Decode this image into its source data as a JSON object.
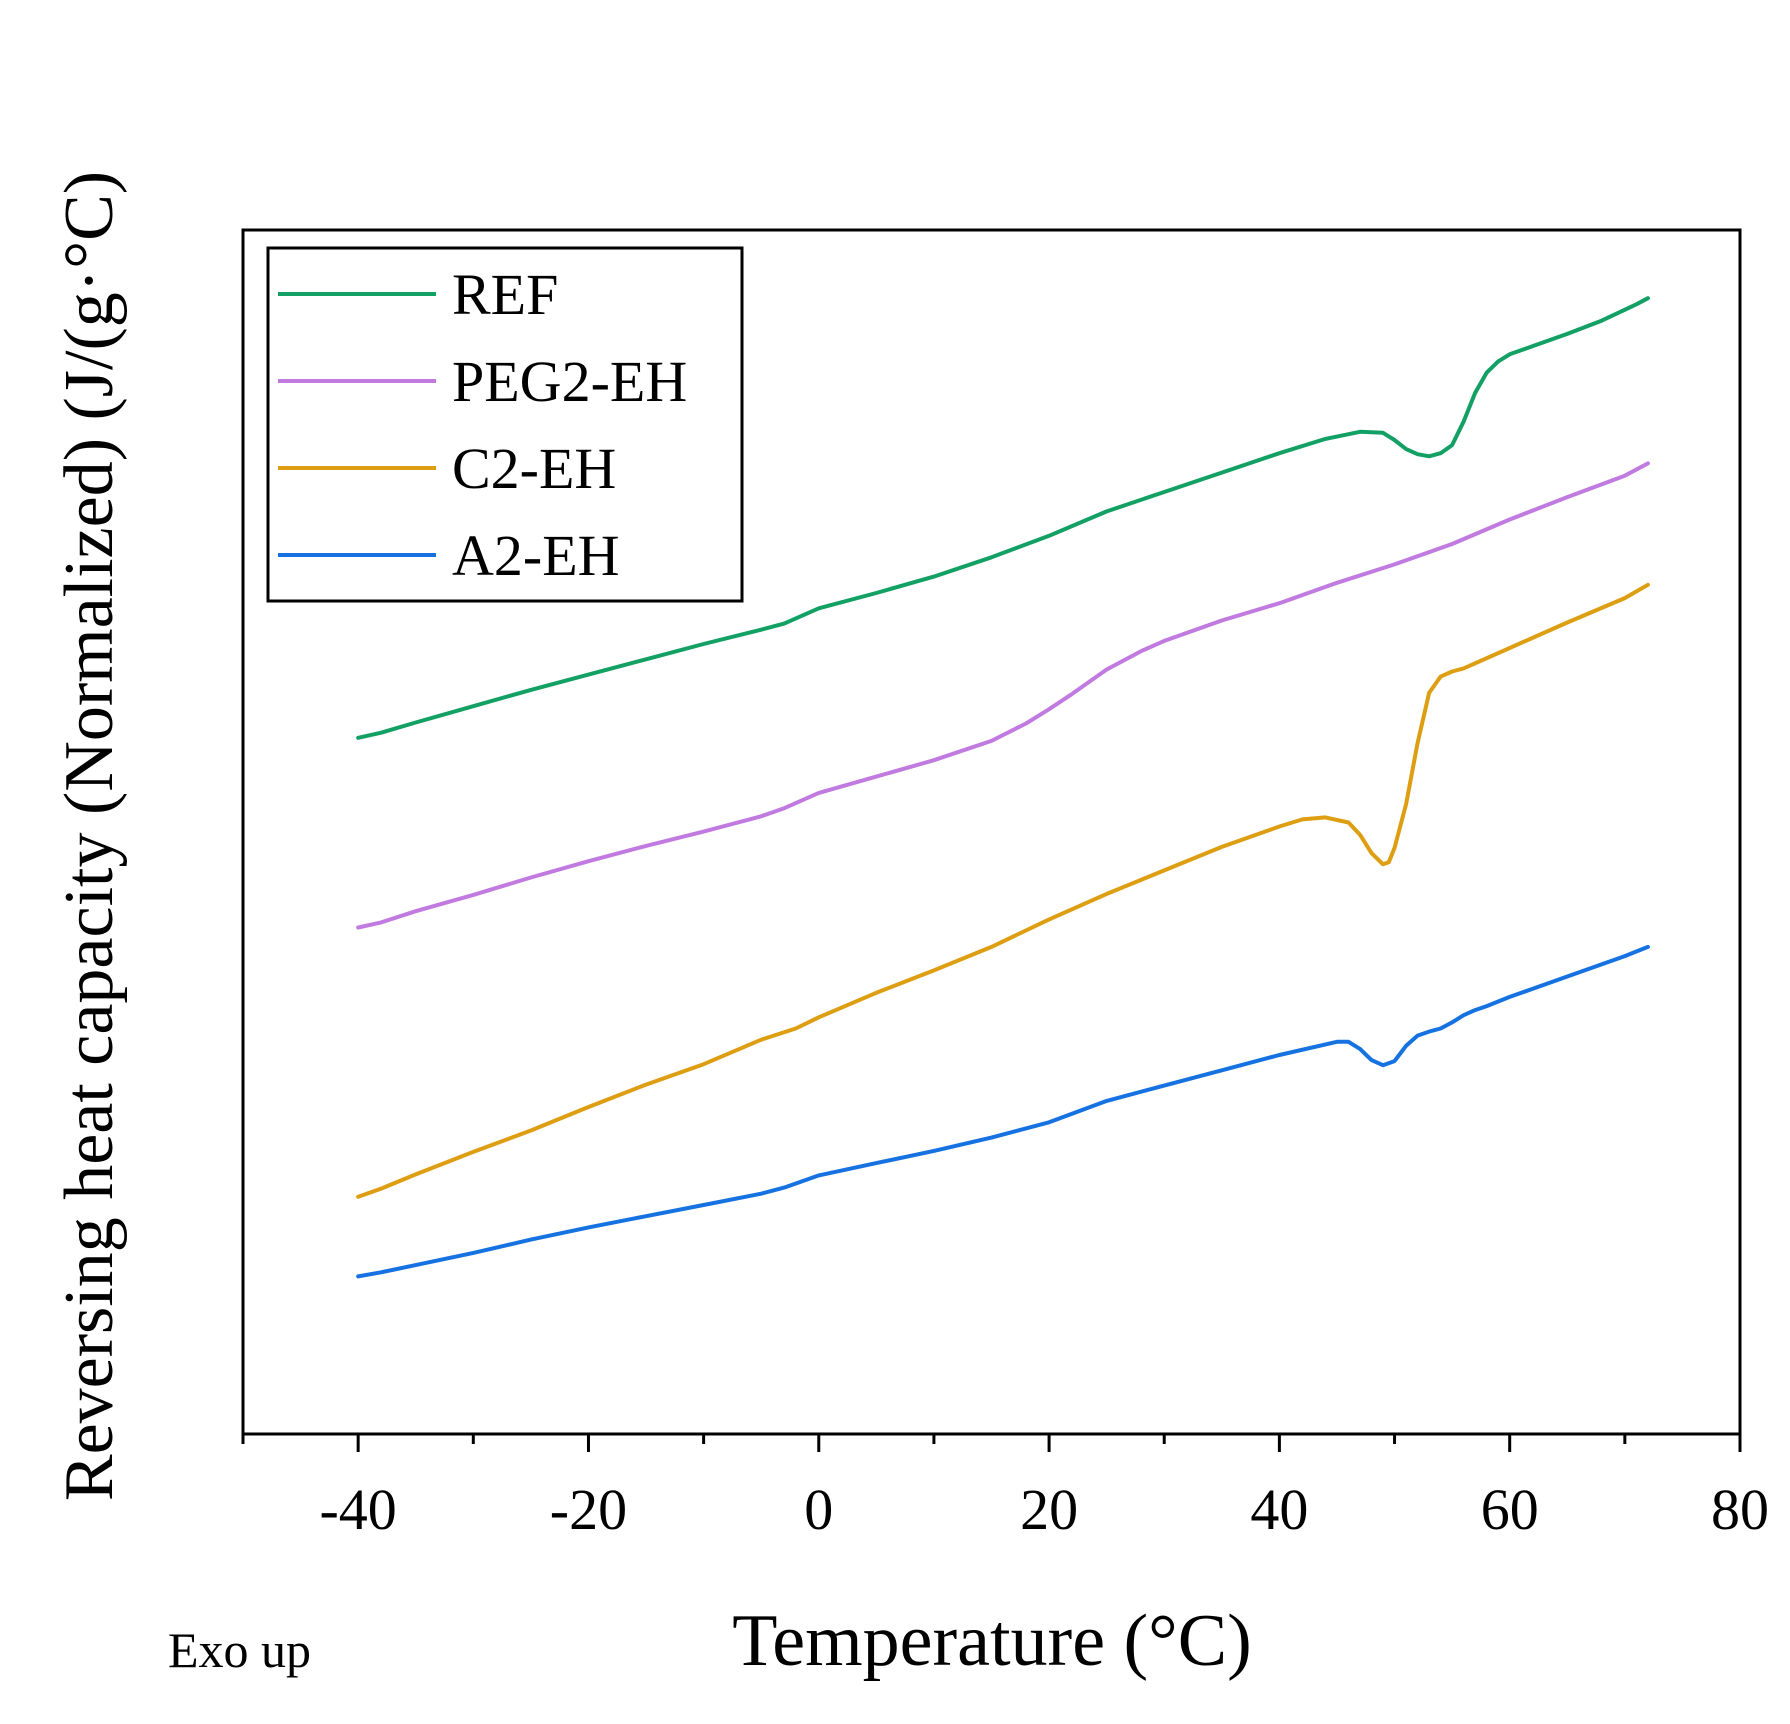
{
  "chart_data": {
    "type": "line",
    "title": "",
    "xlabel": "Temperature (°C)",
    "ylabel": "Reversing heat capacity (Normalized) (J/(g·°C)",
    "annotation": "Exo up",
    "xlim": [
      -50,
      80
    ],
    "ylim": [
      0,
      1
    ],
    "xticks": [
      -40,
      -20,
      0,
      20,
      40,
      60,
      80
    ],
    "xtick_labels": [
      "-40",
      "-20",
      "0",
      "20",
      "40",
      "60",
      "80"
    ],
    "y_ticks_shown": false,
    "grid": false,
    "legend_position": "top-left",
    "series": [
      {
        "name": "REF",
        "color": "#12A064",
        "x": [
          -40,
          -38,
          -35,
          -30,
          -25,
          -20,
          -15,
          -10,
          -5,
          -3,
          0,
          5,
          10,
          15,
          20,
          25,
          30,
          35,
          40,
          44,
          47,
          49,
          50,
          51,
          52,
          53,
          54,
          55,
          56,
          57,
          58,
          59,
          60,
          62,
          65,
          68,
          71,
          72
        ],
        "y": [
          0.61,
          0.615,
          0.625,
          0.641,
          0.657,
          0.672,
          0.687,
          0.702,
          0.716,
          0.722,
          0.737,
          0.752,
          0.768,
          0.787,
          0.808,
          0.832,
          0.851,
          0.87,
          0.889,
          0.903,
          0.91,
          0.909,
          0.902,
          0.893,
          0.888,
          0.886,
          0.889,
          0.897,
          0.92,
          0.948,
          0.968,
          0.979,
          0.986,
          0.994,
          1.006,
          1.019,
          1.035,
          1.041
        ]
      },
      {
        "name": "PEG2-EH",
        "color": "#C07AE0",
        "x": [
          -40,
          -38,
          -35,
          -30,
          -25,
          -20,
          -15,
          -10,
          -5,
          -3,
          0,
          5,
          10,
          15,
          18,
          20,
          22,
          25,
          28,
          30,
          35,
          40,
          45,
          50,
          55,
          60,
          65,
          70,
          72
        ],
        "y": [
          0.424,
          0.429,
          0.44,
          0.456,
          0.473,
          0.489,
          0.504,
          0.518,
          0.533,
          0.541,
          0.556,
          0.572,
          0.588,
          0.607,
          0.624,
          0.638,
          0.653,
          0.677,
          0.695,
          0.705,
          0.725,
          0.742,
          0.762,
          0.78,
          0.8,
          0.824,
          0.846,
          0.867,
          0.879
        ]
      },
      {
        "name": "C2-EH",
        "color": "#DE9E12",
        "x": [
          -40,
          -38,
          -35,
          -30,
          -25,
          -20,
          -15,
          -10,
          -5,
          -2,
          0,
          5,
          10,
          15,
          20,
          25,
          30,
          35,
          40,
          42,
          44,
          46,
          47,
          48,
          49,
          49.5,
          50,
          51,
          52,
          53,
          54,
          55,
          56,
          60,
          65,
          70,
          72
        ],
        "y": [
          0.16,
          0.168,
          0.182,
          0.204,
          0.225,
          0.248,
          0.27,
          0.29,
          0.314,
          0.325,
          0.336,
          0.36,
          0.382,
          0.405,
          0.432,
          0.457,
          0.48,
          0.503,
          0.523,
          0.53,
          0.532,
          0.527,
          0.515,
          0.497,
          0.486,
          0.488,
          0.502,
          0.545,
          0.605,
          0.654,
          0.67,
          0.675,
          0.678,
          0.698,
          0.723,
          0.747,
          0.76
        ]
      },
      {
        "name": "A2-EH",
        "color": "#1572E0",
        "x": [
          -40,
          -38,
          -35,
          -30,
          -25,
          -20,
          -15,
          -10,
          -5,
          -3,
          0,
          5,
          10,
          15,
          20,
          25,
          30,
          35,
          40,
          45,
          46,
          47,
          48,
          49,
          50,
          51,
          52,
          53,
          54,
          55,
          56,
          57,
          58,
          60,
          65,
          70,
          72
        ],
        "y": [
          0.082,
          0.086,
          0.093,
          0.105,
          0.118,
          0.13,
          0.141,
          0.152,
          0.163,
          0.169,
          0.181,
          0.193,
          0.205,
          0.218,
          0.233,
          0.254,
          0.269,
          0.284,
          0.299,
          0.312,
          0.312,
          0.305,
          0.294,
          0.289,
          0.293,
          0.308,
          0.318,
          0.322,
          0.325,
          0.331,
          0.338,
          0.343,
          0.347,
          0.356,
          0.376,
          0.396,
          0.405
        ]
      }
    ]
  }
}
